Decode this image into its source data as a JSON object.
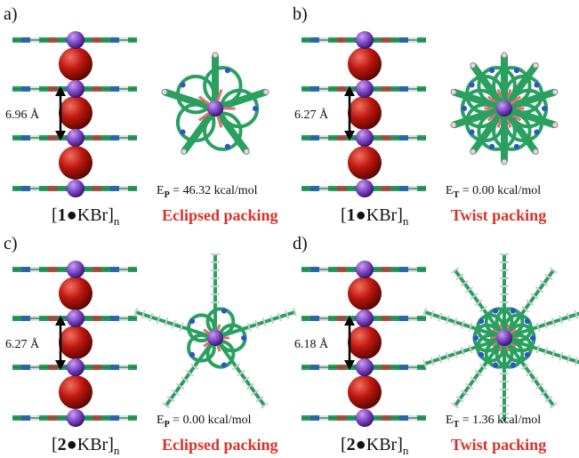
{
  "panels": [
    {
      "label": "a)",
      "distance": "6.96 Å",
      "energy": {
        "symbol": "E",
        "sub": "P",
        "text": " = 46.32 kcal/mol"
      },
      "complex": {
        "open": "[",
        "num": "1",
        "rest": "●KBr]",
        "sub": "n"
      },
      "packing": "Eclipsed packing"
    },
    {
      "label": "b)",
      "distance": "6.27 Å",
      "energy": {
        "symbol": "E",
        "sub": "T",
        "text": " = 0.00 kcal/mol"
      },
      "complex": {
        "open": "[",
        "num": "1",
        "rest": "●KBr]",
        "sub": "n"
      },
      "packing": "Twist packing"
    },
    {
      "label": "c)",
      "distance": "6.27 Å",
      "energy": {
        "symbol": "E",
        "sub": "P",
        "text": " = 0.00 kcal/mol"
      },
      "complex": {
        "open": "[",
        "num": "2",
        "rest": "●KBr]",
        "sub": "n"
      },
      "packing": "Eclipsed packing"
    },
    {
      "label": "d)",
      "distance": "6.18 Å",
      "energy": {
        "symbol": "E",
        "sub": "T",
        "text": " = 1.36 kcal/mol"
      },
      "complex": {
        "open": "[",
        "num": "2",
        "rest": "●KBr]",
        "sub": "n"
      },
      "packing": "Twist packing"
    }
  ]
}
